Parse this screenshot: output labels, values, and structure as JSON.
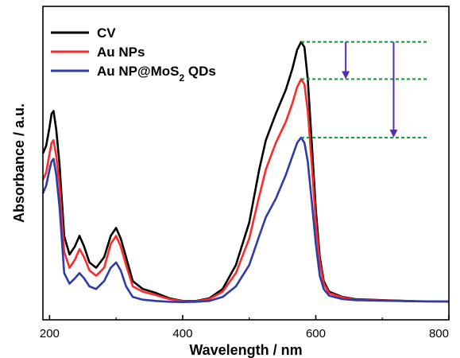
{
  "chart_data": {
    "type": "line",
    "xlabel": "Wavelength / nm",
    "ylabel": "Absorbance / a.u.",
    "xlim": [
      190,
      800
    ],
    "ylim": [
      0,
      1.0
    ],
    "x_ticks": [
      200,
      400,
      600,
      800
    ],
    "y_ticks_shown": false,
    "legend_position": "top-left",
    "series": [
      {
        "name": "CV",
        "color": "#000000",
        "points": [
          [
            190,
            0.56
          ],
          [
            195,
            0.59
          ],
          [
            200,
            0.66
          ],
          [
            203,
            0.71
          ],
          [
            206,
            0.72
          ],
          [
            210,
            0.65
          ],
          [
            215,
            0.52
          ],
          [
            222,
            0.25
          ],
          [
            230,
            0.18
          ],
          [
            238,
            0.21
          ],
          [
            245,
            0.25
          ],
          [
            252,
            0.21
          ],
          [
            260,
            0.15
          ],
          [
            270,
            0.13
          ],
          [
            282,
            0.17
          ],
          [
            292,
            0.25
          ],
          [
            300,
            0.28
          ],
          [
            307,
            0.24
          ],
          [
            315,
            0.17
          ],
          [
            325,
            0.08
          ],
          [
            340,
            0.05
          ],
          [
            360,
            0.035
          ],
          [
            380,
            0.015
          ],
          [
            400,
            0.005
          ],
          [
            420,
            0.005
          ],
          [
            440,
            0.015
          ],
          [
            460,
            0.05
          ],
          [
            480,
            0.14
          ],
          [
            500,
            0.3
          ],
          [
            515,
            0.5
          ],
          [
            525,
            0.61
          ],
          [
            540,
            0.71
          ],
          [
            555,
            0.8
          ],
          [
            565,
            0.88
          ],
          [
            572,
            0.95
          ],
          [
            578,
            0.98
          ],
          [
            583,
            0.96
          ],
          [
            588,
            0.84
          ],
          [
            594,
            0.6
          ],
          [
            600,
            0.35
          ],
          [
            606,
            0.17
          ],
          [
            612,
            0.08
          ],
          [
            620,
            0.04
          ],
          [
            640,
            0.02
          ],
          [
            660,
            0.012
          ],
          [
            700,
            0.008
          ],
          [
            750,
            0.004
          ],
          [
            800,
            0.003
          ]
        ]
      },
      {
        "name": "Au NPs",
        "color": "#ff2a2a",
        "points": [
          [
            190,
            0.46
          ],
          [
            195,
            0.49
          ],
          [
            200,
            0.56
          ],
          [
            203,
            0.6
          ],
          [
            206,
            0.61
          ],
          [
            210,
            0.55
          ],
          [
            215,
            0.44
          ],
          [
            222,
            0.19
          ],
          [
            230,
            0.13
          ],
          [
            238,
            0.16
          ],
          [
            245,
            0.2
          ],
          [
            252,
            0.17
          ],
          [
            260,
            0.12
          ],
          [
            270,
            0.1
          ],
          [
            282,
            0.13
          ],
          [
            292,
            0.22
          ],
          [
            300,
            0.25
          ],
          [
            307,
            0.21
          ],
          [
            315,
            0.14
          ],
          [
            325,
            0.06
          ],
          [
            340,
            0.04
          ],
          [
            360,
            0.027
          ],
          [
            380,
            0.012
          ],
          [
            400,
            0.004
          ],
          [
            420,
            0.004
          ],
          [
            440,
            0.012
          ],
          [
            460,
            0.04
          ],
          [
            480,
            0.11
          ],
          [
            500,
            0.24
          ],
          [
            515,
            0.4
          ],
          [
            525,
            0.5
          ],
          [
            540,
            0.6
          ],
          [
            555,
            0.68
          ],
          [
            565,
            0.75
          ],
          [
            572,
            0.81
          ],
          [
            578,
            0.84
          ],
          [
            583,
            0.82
          ],
          [
            588,
            0.72
          ],
          [
            594,
            0.52
          ],
          [
            600,
            0.3
          ],
          [
            606,
            0.15
          ],
          [
            612,
            0.07
          ],
          [
            620,
            0.035
          ],
          [
            640,
            0.018
          ],
          [
            660,
            0.01
          ],
          [
            700,
            0.007
          ],
          [
            750,
            0.004
          ],
          [
            800,
            0.003
          ]
        ]
      },
      {
        "name": "Au NP@MoS2 QDs",
        "name_prefix": "Au NP@MoS",
        "name_subscript": "2",
        "name_suffix": " QDs",
        "color": "#2e3ba8",
        "points": [
          [
            190,
            0.41
          ],
          [
            195,
            0.44
          ],
          [
            200,
            0.5
          ],
          [
            203,
            0.53
          ],
          [
            206,
            0.54
          ],
          [
            210,
            0.48
          ],
          [
            215,
            0.36
          ],
          [
            222,
            0.11
          ],
          [
            230,
            0.07
          ],
          [
            238,
            0.09
          ],
          [
            245,
            0.11
          ],
          [
            252,
            0.09
          ],
          [
            260,
            0.06
          ],
          [
            270,
            0.05
          ],
          [
            282,
            0.08
          ],
          [
            292,
            0.13
          ],
          [
            300,
            0.15
          ],
          [
            307,
            0.12
          ],
          [
            315,
            0.06
          ],
          [
            325,
            0.02
          ],
          [
            340,
            0.01
          ],
          [
            360,
            0.005
          ],
          [
            380,
            0.002
          ],
          [
            400,
            0.001
          ],
          [
            420,
            0.002
          ],
          [
            440,
            0.005
          ],
          [
            460,
            0.02
          ],
          [
            480,
            0.06
          ],
          [
            500,
            0.14
          ],
          [
            515,
            0.25
          ],
          [
            525,
            0.32
          ],
          [
            540,
            0.39
          ],
          [
            555,
            0.48
          ],
          [
            565,
            0.55
          ],
          [
            572,
            0.6
          ],
          [
            578,
            0.62
          ],
          [
            583,
            0.6
          ],
          [
            588,
            0.53
          ],
          [
            594,
            0.38
          ],
          [
            600,
            0.22
          ],
          [
            606,
            0.1
          ],
          [
            612,
            0.05
          ],
          [
            620,
            0.025
          ],
          [
            640,
            0.012
          ],
          [
            660,
            0.008
          ],
          [
            700,
            0.006
          ],
          [
            750,
            0.004
          ],
          [
            800,
            0.003
          ]
        ]
      }
    ],
    "annotations": {
      "reference_lines": [
        {
          "y": 0.98,
          "x_start": 578,
          "x_end": 800,
          "style": "dashed",
          "color": "#1e9a3a"
        },
        {
          "y": 0.84,
          "x_start": 578,
          "x_end": 800,
          "style": "dashed",
          "color": "#1e9a3a"
        },
        {
          "y": 0.62,
          "x_start": 578,
          "x_end": 800,
          "style": "dashed",
          "color": "#1e9a3a"
        }
      ],
      "arrows": [
        {
          "x": 645,
          "y_from": 0.98,
          "y_to": 0.84,
          "color": "#5a2ab0"
        },
        {
          "x": 717,
          "y_from": 0.98,
          "y_to": 0.62,
          "color": "#5a2ab0"
        }
      ]
    }
  }
}
